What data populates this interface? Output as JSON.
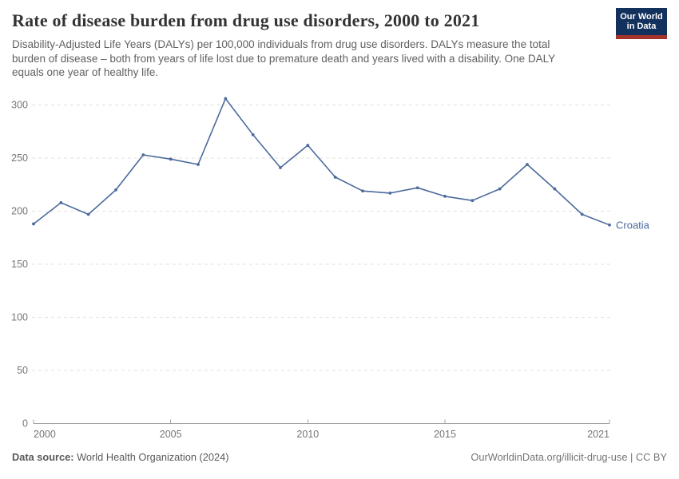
{
  "header": {
    "title": "Rate of disease burden from drug use disorders, 2000 to 2021",
    "subtitle": "Disability-Adjusted Life Years (DALYs) per 100,000 individuals from drug use disorders. DALYs measure the total burden of disease – both from years of life lost due to premature death and years lived with a disability. One DALY equals one year of healthy life.",
    "logo": {
      "line1": "Our World",
      "line2": "in Data"
    }
  },
  "chart_data": {
    "type": "line",
    "title": "Rate of disease burden from drug use disorders, 2000 to 2021",
    "x": [
      2000,
      2001,
      2002,
      2003,
      2004,
      2005,
      2006,
      2007,
      2008,
      2009,
      2010,
      2011,
      2012,
      2013,
      2014,
      2015,
      2016,
      2017,
      2018,
      2019,
      2020,
      2021
    ],
    "series": [
      {
        "name": "Croatia",
        "color": "#4c6a9c",
        "values": [
          188,
          208,
          197,
          220,
          253,
          249,
          244,
          306,
          272,
          241,
          262,
          232,
          219,
          217,
          222,
          214,
          210,
          221,
          244,
          221,
          197,
          187
        ]
      }
    ],
    "end_label": "Croatia",
    "xlabel": "",
    "ylabel": "",
    "xlim": [
      2000,
      2021
    ],
    "ylim": [
      0,
      300
    ],
    "x_ticks": [
      2000,
      2005,
      2010,
      2015,
      2021
    ],
    "y_ticks": [
      0,
      50,
      100,
      150,
      200,
      250,
      300
    ],
    "grid": "horizontal dashed",
    "legend_position": "end-of-line label"
  },
  "colors": {
    "line": "#4c6a9c",
    "grid": "#e2e2e2",
    "axis": "#a3a3a3",
    "tick_text": "#757575",
    "logo_bg": "#12315c",
    "logo_accent": "#a5332b"
  },
  "footer": {
    "source_label": "Data source:",
    "source_value": " World Health Organization (2024)",
    "link": "OurWorldinData.org/illicit-drug-use | CC BY"
  }
}
